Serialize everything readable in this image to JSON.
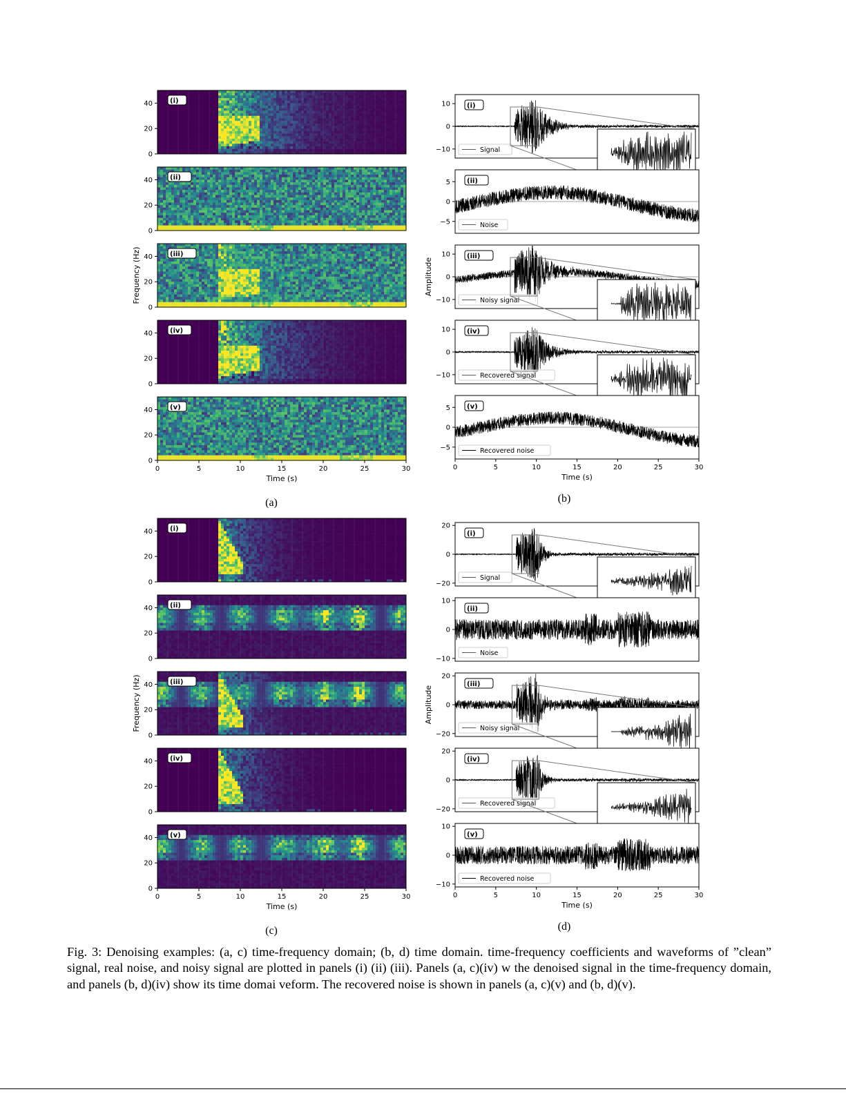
{
  "figure": {
    "subfigures": [
      {
        "label": "(a)",
        "kind": "spectrogram",
        "panels": [
          "(i)",
          "(ii)",
          "(iii)",
          "(iv)",
          "(v)"
        ],
        "ylabel": "Frequency (Hz)",
        "xlabel": "Time (s)",
        "yticks": [
          "0",
          "20",
          "40"
        ],
        "xticks": [
          "0",
          "5",
          "10",
          "15",
          "20",
          "25",
          "30"
        ]
      },
      {
        "label": "(b)",
        "kind": "waveform",
        "panels": [
          "(i)",
          "(ii)",
          "(iii)",
          "(iv)",
          "(v)"
        ],
        "legends": [
          "Signal",
          "Noise",
          "Noisy signal",
          "Recovered signal",
          "Recovered noise"
        ],
        "yticks": [
          [
            "10",
            "0",
            "−10"
          ],
          [
            "5",
            "0",
            "−5"
          ],
          [
            "10",
            "0",
            "−10"
          ],
          [
            "10",
            "0",
            "−10"
          ],
          [
            "5",
            "0",
            "−5"
          ]
        ],
        "ylabel": "Amplitude",
        "xlabel": "Time (s)",
        "xticks": [
          "0",
          "5",
          "10",
          "15",
          "20",
          "25",
          "30"
        ]
      },
      {
        "label": "(c)",
        "kind": "spectrogram",
        "panels": [
          "(i)",
          "(ii)",
          "(iii)",
          "(iv)",
          "(v)"
        ],
        "ylabel": "Frequency (Hz)",
        "xlabel": "Time (s)",
        "yticks": [
          "0",
          "20",
          "40"
        ],
        "xticks": [
          "0",
          "5",
          "10",
          "15",
          "20",
          "25",
          "30"
        ]
      },
      {
        "label": "(d)",
        "kind": "waveform",
        "panels": [
          "(i)",
          "(ii)",
          "(iii)",
          "(iv)",
          "(v)"
        ],
        "legends": [
          "Signal",
          "Noise",
          "Noisy signal",
          "Recovered signal",
          "Recovered noise"
        ],
        "yticks": [
          [
            "20",
            "0",
            "−20"
          ],
          [
            "10",
            "0",
            "−10"
          ],
          [
            "20",
            "0",
            "−20"
          ],
          [
            "20",
            "0",
            "−20"
          ],
          [
            "10",
            "0",
            "−10"
          ]
        ],
        "ylabel": "Amplitude",
        "xlabel": "Time (s)",
        "xticks": [
          "0",
          "5",
          "10",
          "15",
          "20",
          "25",
          "30"
        ]
      }
    ],
    "caption": "Fig. 3: Denoising examples: (a, c) time-frequency domain; (b, d) time domain.        time-frequency coefficients and waveforms of ”clean” signal, real noise, and noisy signal are plotted in panels (i) (ii) (iii). Panels (a, c)(iv)      w the denoised signal in the time-frequency domain, and panels (b, d)(iv) show its time domai       veform. The recovered noise is shown in panels (a, c)(v) and (b, d)(v)."
  },
  "chart_data": [
    {
      "type": "heatmap",
      "title": "(a)",
      "xlabel": "Time (s)",
      "ylabel": "Frequency (Hz)",
      "xlim": [
        0,
        30
      ],
      "ylim": [
        0,
        50
      ],
      "colormap": [
        "#440154",
        "#3b528b",
        "#21918c",
        "#5ec962",
        "#fde725"
      ],
      "panels": [
        {
          "label": "(i)",
          "content": "signal",
          "onset_s": 7.5,
          "band_hz": [
            5,
            30
          ],
          "decay_end_s": 12.5
        },
        {
          "label": "(ii)",
          "content": "noise",
          "lowband_hz": [
            0,
            5
          ]
        },
        {
          "label": "(iii)",
          "content": "noisy signal"
        },
        {
          "label": "(iv)",
          "content": "recovered signal",
          "onset_s": 7.5,
          "band_hz": [
            5,
            30
          ],
          "decay_end_s": 12.5
        },
        {
          "label": "(v)",
          "content": "recovered noise",
          "lowband_hz": [
            0,
            5
          ]
        }
      ]
    },
    {
      "type": "line",
      "title": "(b)",
      "xlabel": "Time (s)",
      "ylabel": "Amplitude",
      "xlim": [
        0,
        30
      ],
      "panels": [
        {
          "label": "(i)",
          "legend": "Signal",
          "ylim": [
            -14,
            14
          ],
          "onset_s": 7.3,
          "peak_amp": 13,
          "baseline_drift": 0,
          "noise_amp": 0.2,
          "inset": true
        },
        {
          "label": "(ii)",
          "legend": "Noise",
          "ylim": [
            -8,
            8
          ],
          "onset_s": null,
          "peak_amp": 0,
          "baseline_drift": 3,
          "noise_amp": 1.8,
          "inset": false
        },
        {
          "label": "(iii)",
          "legend": "Noisy signal",
          "ylim": [
            -14,
            14
          ],
          "onset_s": 7.3,
          "peak_amp": 13,
          "baseline_drift": 3,
          "noise_amp": 1.6,
          "inset": true
        },
        {
          "label": "(iv)",
          "legend": "Recovered signal",
          "ylim": [
            -14,
            14
          ],
          "onset_s": 7.3,
          "peak_amp": 12,
          "baseline_drift": 0,
          "noise_amp": 0.3,
          "inset": true
        },
        {
          "label": "(v)",
          "legend": "Recovered noise",
          "ylim": [
            -8,
            8
          ],
          "onset_s": null,
          "peak_amp": 0,
          "baseline_drift": 3,
          "noise_amp": 1.6,
          "inset": false
        }
      ]
    },
    {
      "type": "heatmap",
      "title": "(c)",
      "xlabel": "Time (s)",
      "ylabel": "Frequency (Hz)",
      "xlim": [
        0,
        30
      ],
      "ylim": [
        0,
        50
      ],
      "colormap": [
        "#440154",
        "#3b528b",
        "#21918c",
        "#5ec962",
        "#fde725"
      ],
      "panels": [
        {
          "label": "(i)",
          "content": "signal",
          "onset_s": 7.5,
          "band_hz": [
            5,
            48
          ],
          "decay_end_s": 10
        },
        {
          "label": "(ii)",
          "content": "noise",
          "band_hz": [
            22,
            42
          ]
        },
        {
          "label": "(iii)",
          "content": "noisy signal"
        },
        {
          "label": "(iv)",
          "content": "recovered signal",
          "onset_s": 7.5,
          "band_hz": [
            5,
            48
          ],
          "decay_end_s": 10
        },
        {
          "label": "(v)",
          "content": "recovered noise",
          "band_hz": [
            22,
            42
          ]
        }
      ]
    },
    {
      "type": "line",
      "title": "(d)",
      "xlabel": "Time (s)",
      "ylabel": "Amplitude",
      "xlim": [
        0,
        30
      ],
      "panels": [
        {
          "label": "(i)",
          "legend": "Signal",
          "ylim": [
            -22,
            22
          ],
          "onset_s": 7.5,
          "peak_amp": 21,
          "baseline_drift": 0,
          "noise_amp": 0.3,
          "inset": true
        },
        {
          "label": "(ii)",
          "legend": "Noise",
          "ylim": [
            -11,
            11
          ],
          "onset_s": null,
          "peak_amp": 0,
          "baseline_drift": 0,
          "noise_amp": 3.5,
          "inset": false
        },
        {
          "label": "(iii)",
          "legend": "Noisy signal",
          "ylim": [
            -22,
            22
          ],
          "onset_s": 7.5,
          "peak_amp": 21,
          "baseline_drift": 0,
          "noise_amp": 3,
          "inset": true
        },
        {
          "label": "(iv)",
          "legend": "Recovered signal",
          "ylim": [
            -22,
            22
          ],
          "onset_s": 7.5,
          "peak_amp": 20,
          "baseline_drift": 0,
          "noise_amp": 0.4,
          "inset": true
        },
        {
          "label": "(v)",
          "legend": "Recovered noise",
          "ylim": [
            -11,
            11
          ],
          "onset_s": null,
          "peak_amp": 0,
          "baseline_drift": 0,
          "noise_amp": 3.2,
          "inset": false
        }
      ]
    }
  ]
}
